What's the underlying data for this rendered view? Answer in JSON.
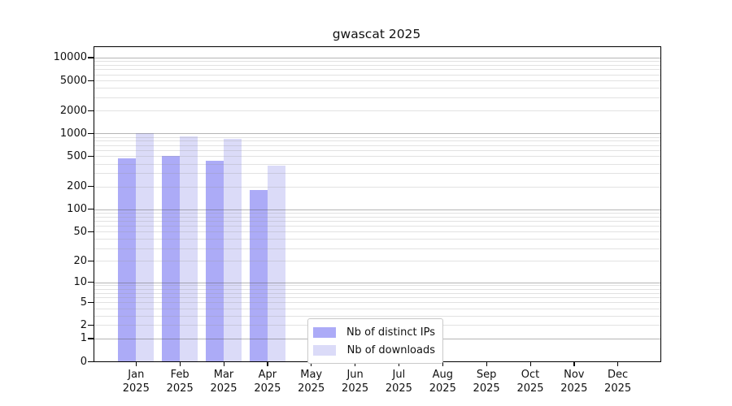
{
  "title": "gwascat 2025",
  "colors": {
    "distinct_ips_bar": "#acabf7",
    "downloads_bar": "#dbdbf8",
    "axis": "#000000",
    "grid_major": "#b5b5b5",
    "grid_minor": "#e2e2e2",
    "legend_border": "#c9c9c9",
    "background": "#ffffff"
  },
  "chart_data": {
    "type": "bar",
    "title": "gwascat 2025",
    "yscale": "log1p",
    "grid": true,
    "categories": [
      "Jan",
      "Feb",
      "Mar",
      "Apr",
      "May",
      "Jun",
      "Jul",
      "Aug",
      "Sep",
      "Oct",
      "Nov",
      "Dec"
    ],
    "year_label": "2025",
    "series": [
      {
        "name": "Nb of distinct IPs",
        "color": "#acabf7",
        "values": [
          470,
          500,
          440,
          180,
          null,
          null,
          null,
          null,
          null,
          null,
          null,
          null
        ]
      },
      {
        "name": "Nb of downloads",
        "color": "#dbdbf8",
        "values": [
          1010,
          920,
          850,
          380,
          null,
          null,
          null,
          null,
          null,
          null,
          null,
          null
        ]
      }
    ],
    "yticks": [
      10000,
      5000,
      2000,
      1000,
      500,
      200,
      100,
      50,
      20,
      10,
      5,
      2,
      1,
      0
    ],
    "ylim": [
      0,
      13700
    ],
    "legend_position": "lower-center"
  }
}
